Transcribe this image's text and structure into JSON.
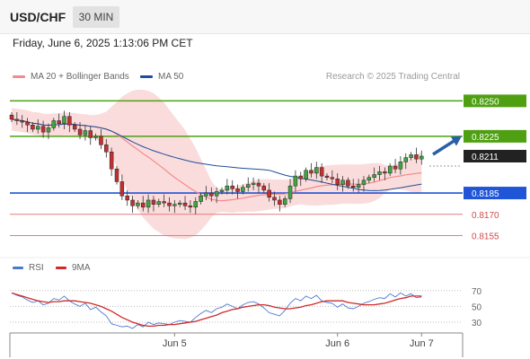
{
  "header": {
    "pair": "USD/CHF",
    "timeframe": "30 MIN"
  },
  "timestamp": "Friday, June 6, 2025 1:13:06 PM CET",
  "legend": {
    "ma20": {
      "label": "MA 20 + Bollinger Bands",
      "color": "#f28b8b"
    },
    "ma50": {
      "label": "MA 50",
      "color": "#1f4e9a"
    }
  },
  "credit": "Research © 2025 Trading Central",
  "rsi_legend": {
    "rsi": {
      "label": "RSI",
      "color": "#4a78d0"
    },
    "ma9": {
      "label": "9MA",
      "color": "#d02a2a"
    }
  },
  "chart_data": [
    {
      "type": "candlestick",
      "pair": "USD/CHF",
      "timeframe": "30 MIN",
      "ylim": [
        0.8142,
        0.8261
      ],
      "x_labels": [
        "Jun 5",
        "Jun 6",
        "Jun 7"
      ],
      "x_label_index": [
        31,
        62,
        78
      ],
      "closes": [
        0.8237,
        0.8236,
        0.8235,
        0.8233,
        0.823,
        0.8232,
        0.8228,
        0.8231,
        0.8236,
        0.8234,
        0.8239,
        0.8233,
        0.823,
        0.8226,
        0.8229,
        0.8224,
        0.8225,
        0.8219,
        0.8214,
        0.8202,
        0.8193,
        0.8183,
        0.818,
        0.8176,
        0.8178,
        0.8175,
        0.818,
        0.8177,
        0.8179,
        0.8178,
        0.8176,
        0.8177,
        0.8178,
        0.8176,
        0.8175,
        0.8179,
        0.8183,
        0.8185,
        0.8183,
        0.8186,
        0.8187,
        0.819,
        0.8188,
        0.8186,
        0.8189,
        0.8191,
        0.8192,
        0.819,
        0.8187,
        0.8182,
        0.818,
        0.8177,
        0.8181,
        0.819,
        0.8197,
        0.8195,
        0.8201,
        0.8199,
        0.8203,
        0.8197,
        0.8196,
        0.8195,
        0.8191,
        0.8194,
        0.819,
        0.8189,
        0.8191,
        0.8194,
        0.8196,
        0.8198,
        0.82,
        0.8199,
        0.8204,
        0.8202,
        0.8207,
        0.821,
        0.8212,
        0.8209,
        0.8211
      ],
      "levels": [
        {
          "value": 0.825,
          "label": "0.8250",
          "color": "#4ea012",
          "type": "resistance"
        },
        {
          "value": 0.8225,
          "label": "0.8225",
          "color": "#4ea012",
          "type": "resistance"
        },
        {
          "value": 0.8211,
          "label": "0.8211",
          "color": "#222222",
          "type": "last"
        },
        {
          "value": 0.8185,
          "label": "0.8185",
          "color": "#1f55d6",
          "type": "pivot"
        },
        {
          "value": 0.817,
          "label": "0.8170",
          "color": "#e87a7a",
          "type": "support"
        },
        {
          "value": 0.8155,
          "label": "0.8155",
          "color": "#e87a7a",
          "type": "support"
        }
      ],
      "arrow": {
        "direction": "up",
        "color": "#2a5fa8"
      },
      "colors": {
        "up": "#3fa63f",
        "down": "#c43030",
        "band": "#fbdcdc"
      }
    },
    {
      "type": "line",
      "title": "RSI",
      "ylim": [
        22,
        80
      ],
      "y_ticks": [
        70,
        50,
        30
      ],
      "series": [
        {
          "name": "RSI",
          "color": "#4a78d0",
          "values": [
            67,
            64,
            62,
            58,
            55,
            57,
            52,
            54,
            60,
            58,
            63,
            57,
            53,
            50,
            54,
            46,
            49,
            43,
            38,
            28,
            26,
            24,
            25,
            22,
            27,
            24,
            30,
            27,
            29,
            28,
            27,
            30,
            32,
            31,
            30,
            36,
            41,
            45,
            42,
            47,
            49,
            53,
            50,
            47,
            52,
            55,
            56,
            53,
            48,
            42,
            40,
            38,
            45,
            54,
            60,
            57,
            63,
            60,
            64,
            57,
            55,
            54,
            49,
            53,
            48,
            47,
            50,
            54,
            56,
            59,
            61,
            60,
            66,
            62,
            67,
            63,
            66,
            61,
            62
          ]
        },
        {
          "name": "9MA",
          "color": "#d02a2a",
          "values": [
            67,
            65,
            63,
            61,
            59,
            57,
            56,
            55,
            56,
            56,
            57,
            57,
            57,
            56,
            55,
            54,
            52,
            50,
            47,
            44,
            40,
            36,
            33,
            30,
            28,
            26,
            25,
            25,
            26,
            26,
            27,
            27,
            28,
            29,
            30,
            31,
            33,
            35,
            37,
            39,
            42,
            44,
            46,
            47,
            49,
            50,
            51,
            52,
            52,
            51,
            49,
            48,
            47,
            47,
            48,
            49,
            51,
            52,
            54,
            56,
            57,
            57,
            57,
            57,
            55,
            54,
            53,
            52,
            52,
            52,
            53,
            54,
            56,
            58,
            60,
            61,
            63,
            63,
            63
          ]
        }
      ]
    }
  ]
}
